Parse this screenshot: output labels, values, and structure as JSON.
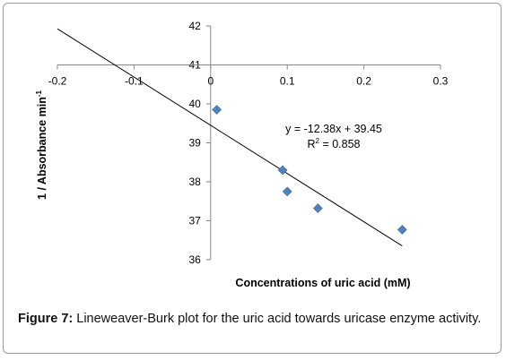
{
  "chart_data": {
    "type": "scatter",
    "title": "",
    "xlabel": "Concentrations of uric acid (mM)",
    "ylabel": "1 / Absorbance min",
    "ylabel_superscript": "-1",
    "xlim": [
      -0.2,
      0.3
    ],
    "ylim": [
      36,
      42
    ],
    "x_axis_crosses_y_at": 41,
    "x_ticks": [
      -0.2,
      -0.1,
      0,
      0.1,
      0.2,
      0.3
    ],
    "x_tick_labels": [
      "-0.2",
      "-0.1",
      "0",
      "0.1",
      "0.2",
      "0.3"
    ],
    "y_ticks": [
      36,
      37,
      38,
      39,
      40,
      41,
      42
    ],
    "y_tick_labels": [
      "36",
      "37",
      "38",
      "39",
      "40",
      "41",
      "42"
    ],
    "marker_color": "#4f81bd",
    "grid": false,
    "series": [
      {
        "points": [
          {
            "x": 0.008,
            "y": 39.85
          },
          {
            "x": 0.094,
            "y": 38.3
          },
          {
            "x": 0.1,
            "y": 37.75
          },
          {
            "x": 0.14,
            "y": 37.32
          },
          {
            "x": 0.25,
            "y": 36.77
          }
        ]
      }
    ],
    "trendline": {
      "slope": -12.38,
      "intercept": 39.45,
      "x_range": [
        -0.2,
        0.25
      ],
      "equation_label": "y = -12.38x + 39.45",
      "r2_label_prefix": "R",
      "r2_label_suffix": " = 0.858"
    }
  },
  "caption": {
    "figure_label": "Figure 7:",
    "text": " Lineweaver-Burk plot for the uric acid towards uricase enzyme activity."
  }
}
